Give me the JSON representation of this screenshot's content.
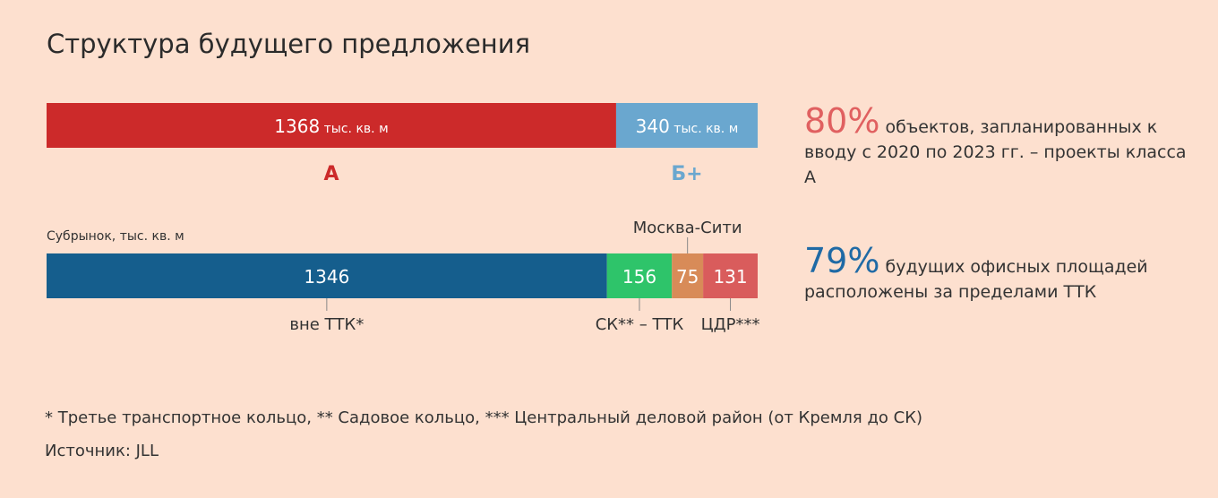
{
  "title": "Структура будущего предложения",
  "colors": {
    "background": "#fde0cf",
    "class_a": "#cc2a2a",
    "class_b": "#6aa7cf",
    "outside_ttk": "#155e8d",
    "sk_ttk": "#2ec46a",
    "moscow_city": "#d88b58",
    "cdr": "#d95c5c",
    "stat1": "#e06060",
    "stat2": "#1f6aa5"
  },
  "chart_data": [
    {
      "type": "bar",
      "orientation": "horizontal-stacked",
      "series": [
        {
          "name": "А",
          "value": 1368,
          "value_label": "1368",
          "unit": "тыс. кв. м"
        },
        {
          "name": "Б+",
          "value": 340,
          "value_label": "340",
          "unit": "тыс. кв. м"
        }
      ]
    },
    {
      "type": "bar",
      "orientation": "horizontal-stacked",
      "subtitle": "Субрынок, тыс. кв. м",
      "series": [
        {
          "name": "вне ТТК*",
          "value": 1346,
          "value_label": "1346"
        },
        {
          "name": "СК** – ТТК",
          "value": 156,
          "value_label": "156"
        },
        {
          "name": "Москва-Сити",
          "value": 75,
          "value_label": "75"
        },
        {
          "name": "ЦДР***",
          "value": 131,
          "value_label": "131"
        }
      ]
    }
  ],
  "stats": [
    {
      "big": "80%",
      "text": " объектов, запланированных к вводу с 2020 по 2023 гг. – проекты класса А"
    },
    {
      "big": "79%",
      "text": " будущих офисных площадей расположены за пределами ТТК"
    }
  ],
  "footnote": "* Третье транспортное кольцо, ** Садовое кольцо, *** Центральный деловой район (от Кремля до СК)",
  "source": "Источник: JLL"
}
